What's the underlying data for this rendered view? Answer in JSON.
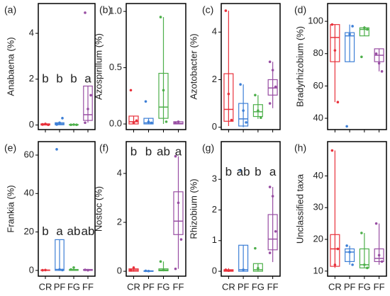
{
  "chart_data": [
    {
      "type": "box",
      "panel": "(a)",
      "ylabel": "Anabaena (%)",
      "ylim": [
        -0.2,
        5.3
      ],
      "yticks": [
        0,
        2,
        4
      ],
      "letters": [
        "b",
        "b",
        "b",
        "a"
      ],
      "series": [
        {
          "color": "#e8313b",
          "min": 0,
          "q1": 0,
          "median": 0.02,
          "q3": 0.05,
          "max": 0.05,
          "points": [
            0.02,
            0.05,
            0.01,
            0.03
          ]
        },
        {
          "color": "#3d7fd6",
          "min": 0,
          "q1": 0.01,
          "median": 0.05,
          "q3": 0.1,
          "max": 0.1,
          "points": [
            0.05,
            0.1,
            0.3,
            0.02
          ]
        },
        {
          "color": "#4daf4a",
          "min": 0,
          "q1": 0,
          "median": 0.01,
          "q3": 0.02,
          "max": 0.02,
          "points": [
            0.01,
            0.02,
            0.01
          ]
        },
        {
          "color": "#984ea3",
          "min": 0.1,
          "q1": 0.2,
          "median": 0.45,
          "q3": 1.7,
          "max": 1.7,
          "points": [
            0.1,
            0.7,
            1.3,
            4.9
          ]
        }
      ]
    },
    {
      "type": "box",
      "panel": "(b)",
      "ylabel": "Azospirillum (%)",
      "ylim": [
        -0.05,
        1.07
      ],
      "yticks": [
        {
          "value": 0,
          "label": "0.0"
        },
        {
          "value": 0.5,
          "label": "0.5"
        },
        {
          "value": 1,
          "label": "1.0"
        }
      ],
      "series": [
        {
          "color": "#e8313b",
          "min": 0,
          "q1": 0,
          "median": 0.02,
          "q3": 0.07,
          "max": 0.07,
          "points": [
            0.3,
            0.01,
            0.03
          ]
        },
        {
          "color": "#3d7fd6",
          "min": 0,
          "q1": 0,
          "median": 0.01,
          "q3": 0.05,
          "max": 0.05,
          "points": [
            0.2,
            0.02,
            0.01
          ]
        },
        {
          "color": "#4daf4a",
          "min": 0,
          "q1": 0.05,
          "median": 0.15,
          "q3": 0.45,
          "max": 0.95,
          "points": [
            0.95,
            0.3,
            0.02
          ]
        },
        {
          "color": "#984ea3",
          "min": 0,
          "q1": 0,
          "median": 0.005,
          "q3": 0.02,
          "max": 0.02,
          "points": [
            0.01,
            0.02
          ]
        }
      ]
    },
    {
      "type": "box",
      "panel": "(c)",
      "ylabel": "Azotobacter (%)",
      "ylim": [
        -0.1,
        5.2
      ],
      "yticks": [
        0,
        2,
        4
      ],
      "series": [
        {
          "color": "#e8313b",
          "min": 0.05,
          "q1": 0.25,
          "median": 0.75,
          "q3": 2.25,
          "max": 4.9,
          "points": [
            4.9,
            1.4,
            0.3
          ]
        },
        {
          "color": "#3d7fd6",
          "min": 0,
          "q1": 0.05,
          "median": 0.35,
          "q3": 1.0,
          "max": 1.8,
          "points": [
            1.8,
            0.7,
            0.2
          ]
        },
        {
          "color": "#4daf4a",
          "min": 0.35,
          "q1": 0.45,
          "median": 0.65,
          "q3": 0.95,
          "max": 1.35,
          "points": [
            1.35,
            0.7,
            0.4
          ]
        },
        {
          "color": "#984ea3",
          "min": 0.8,
          "q1": 1.35,
          "median": 1.65,
          "q3": 2.0,
          "max": 2.75,
          "points": [
            2.75,
            2.4,
            1.7,
            1.0
          ]
        }
      ]
    },
    {
      "type": "box",
      "panel": "(d)",
      "ylabel": "Bradyrhizobium (%)",
      "ylim": [
        33,
        111
      ],
      "yticks": [
        40,
        60,
        80,
        100
      ],
      "series": [
        {
          "color": "#e8313b",
          "min": 50,
          "q1": 75,
          "median": 90,
          "q3": 98,
          "max": 98,
          "points": [
            98,
            82,
            50
          ]
        },
        {
          "color": "#3d7fd6",
          "min": 75,
          "q1": 75,
          "median": 91,
          "q3": 93,
          "max": 98,
          "points": [
            35,
            92,
            97
          ]
        },
        {
          "color": "#4daf4a",
          "min": 91,
          "q1": 91,
          "median": 95,
          "q3": 96,
          "max": 97,
          "points": [
            78,
            96,
            95
          ]
        },
        {
          "color": "#984ea3",
          "min": 69,
          "q1": 75,
          "median": 79,
          "q3": 83,
          "max": 83,
          "points": [
            80,
            74,
            69
          ]
        }
      ]
    },
    {
      "type": "box",
      "panel": "(e)",
      "ylabel": "Frankia (%)",
      "ylim": [
        -3,
        67
      ],
      "yticks": [
        0,
        20,
        40,
        60
      ],
      "letters": [
        "b",
        "a",
        "ab",
        "ab"
      ],
      "categories": [
        "CR",
        "PF",
        "FG",
        "FF"
      ],
      "series": [
        {
          "color": "#e8313b",
          "min": 0,
          "q1": 0,
          "median": 0.1,
          "q3": 0.2,
          "max": 0.2,
          "points": [
            0.1,
            0.2
          ]
        },
        {
          "color": "#3d7fd6",
          "min": 0,
          "q1": 0,
          "median": 0.5,
          "q3": 16,
          "max": 16,
          "points": [
            63,
            0.5,
            0.2
          ]
        },
        {
          "color": "#4daf4a",
          "min": 0,
          "q1": 0,
          "median": 0.3,
          "q3": 0.5,
          "max": 1,
          "points": [
            0.5,
            1.5
          ]
        },
        {
          "color": "#984ea3",
          "min": 0,
          "q1": 0,
          "median": 0.2,
          "q3": 0.5,
          "max": 0.5,
          "points": [
            0.3,
            0.1
          ]
        }
      ]
    },
    {
      "type": "box",
      "panel": "(f)",
      "ylabel": "Nostoc (%)",
      "ylim": [
        -0.2,
        5.3
      ],
      "yticks": [
        0,
        2,
        4
      ],
      "letters": [
        "b",
        "b",
        "ab",
        "a"
      ],
      "categories": [
        "CR",
        "PF",
        "FG",
        "FF"
      ],
      "series": [
        {
          "color": "#e8313b",
          "min": 0,
          "q1": 0,
          "median": 0.05,
          "q3": 0.1,
          "max": 0.2,
          "points": [
            0.05,
            0.15
          ]
        },
        {
          "color": "#3d7fd6",
          "min": 0,
          "q1": 0,
          "median": 0,
          "q3": 0.02,
          "max": 0.02,
          "points": [
            0.02,
            0.01
          ]
        },
        {
          "color": "#4daf4a",
          "min": 0,
          "q1": 0.02,
          "median": 0.05,
          "q3": 0.1,
          "max": 0.4,
          "points": [
            0.4,
            0.05
          ]
        },
        {
          "color": "#984ea3",
          "min": 0.1,
          "q1": 1.5,
          "median": 2.05,
          "q3": 3.25,
          "max": 4.7,
          "points": [
            4.7,
            2.8,
            1.3,
            0.1
          ]
        }
      ]
    },
    {
      "type": "box",
      "panel": "(g)",
      "ylabel": "Rhizobium (%)",
      "ylim": [
        -0.16,
        4.23
      ],
      "yticks": [
        0,
        1,
        2,
        3
      ],
      "letters": [
        "b",
        "ab",
        "b",
        "a"
      ],
      "categories": [
        "CR",
        "PF",
        "FG",
        "FF"
      ],
      "series": [
        {
          "color": "#e8313b",
          "min": 0,
          "q1": 0,
          "median": 0.02,
          "q3": 0.05,
          "max": 0.1,
          "points": [
            0.05,
            0.02
          ]
        },
        {
          "color": "#3d7fd6",
          "min": 0,
          "q1": 0,
          "median": 0.05,
          "q3": 0.85,
          "max": 0.85,
          "points": [
            3.3,
            0.05
          ]
        },
        {
          "color": "#4daf4a",
          "min": 0,
          "q1": 0,
          "median": 0.05,
          "q3": 0.25,
          "max": 0.25,
          "points": [
            0.75,
            0.1
          ]
        },
        {
          "color": "#984ea3",
          "min": 0.3,
          "q1": 0.7,
          "median": 1.05,
          "q3": 1.85,
          "max": 2.75,
          "points": [
            2.75,
            2.45,
            1.3,
            0.6
          ]
        }
      ]
    },
    {
      "type": "box",
      "panel": "(h)",
      "ylabel": "Unclassified taxa",
      "ylim": [
        8.4,
        50.8
      ],
      "yticks": [
        10,
        20,
        30,
        40
      ],
      "categories": [
        "CR",
        "PF",
        "FG",
        "FF"
      ],
      "series": [
        {
          "color": "#e8313b",
          "min": 11,
          "q1": 11.5,
          "median": 17,
          "q3": 21.5,
          "max": 48,
          "points": [
            48,
            12,
            17
          ]
        },
        {
          "color": "#3d7fd6",
          "min": 12,
          "q1": 13,
          "median": 16,
          "q3": 17,
          "max": 18,
          "points": [
            18,
            16,
            12
          ]
        },
        {
          "color": "#4daf4a",
          "min": 11,
          "q1": 11,
          "median": 12,
          "q3": 17,
          "max": 22,
          "points": [
            22,
            12,
            11
          ]
        },
        {
          "color": "#984ea3",
          "min": 12,
          "q1": 13,
          "median": 14,
          "q3": 17,
          "max": 25,
          "points": [
            25,
            15,
            13
          ]
        }
      ]
    }
  ]
}
